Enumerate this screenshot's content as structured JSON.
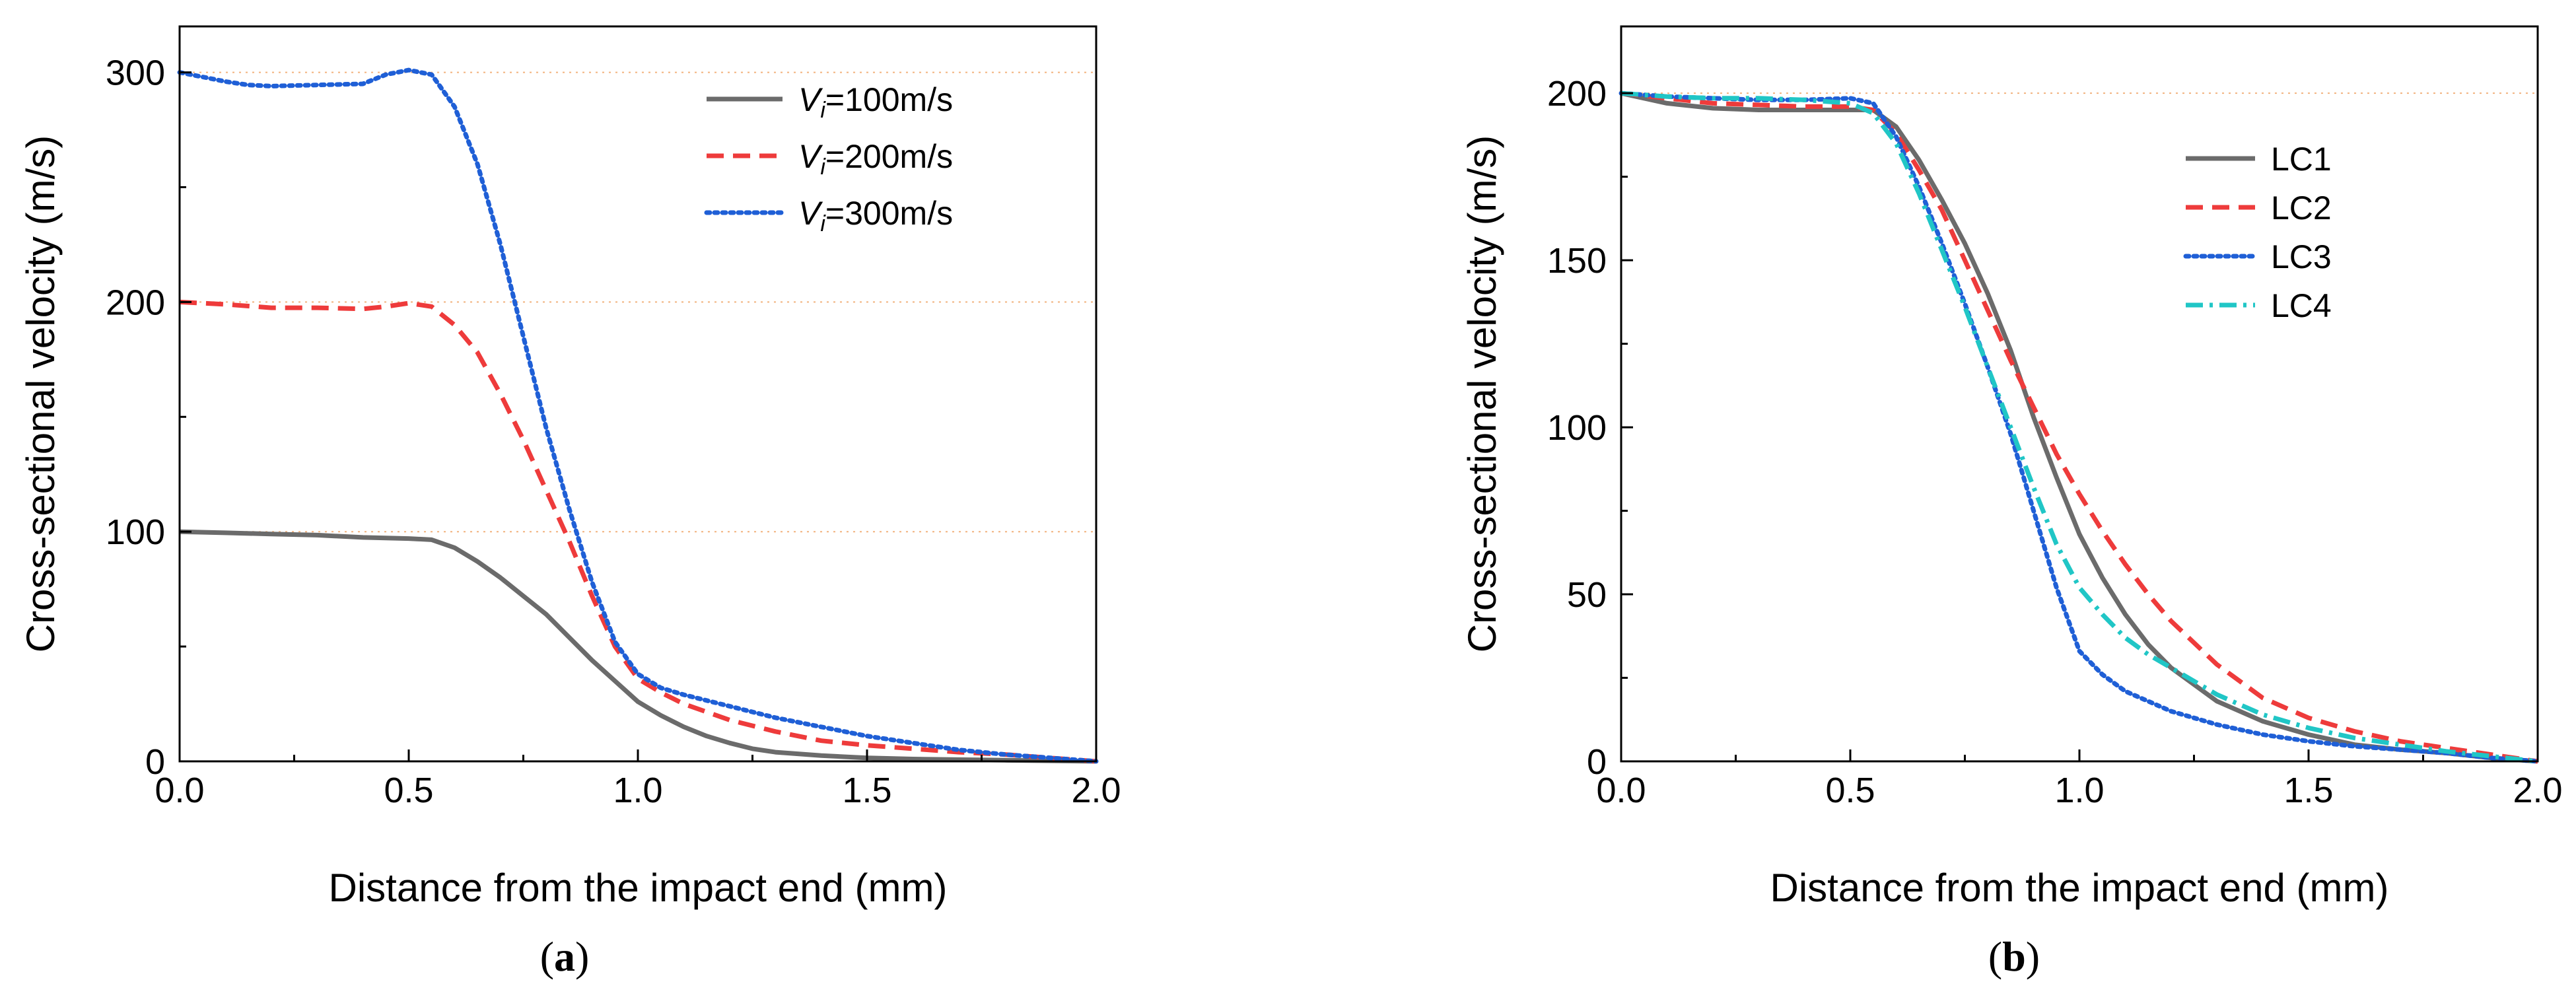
{
  "chart_data": [
    {
      "id": "a",
      "panel_label": "(a)",
      "type": "line",
      "xlabel": "Distance from the impact end (mm)",
      "ylabel": "Cross-sectional velocity (m/s)",
      "xlim": [
        0,
        2.0
      ],
      "ylim": [
        0,
        320
      ],
      "xticks": [
        "0.0",
        "0.5",
        "1.0",
        "1.5",
        "2.0"
      ],
      "yticks": [
        "0",
        "100",
        "200",
        "300"
      ],
      "legend_position": "top-right",
      "reference_lines": [
        100,
        200,
        300
      ],
      "series": [
        {
          "name": "V_i=100m/s",
          "label_prefix": "V",
          "label_sub": "i",
          "label_suffix": "=100m/s",
          "color": "#6b6b6b",
          "dash": "solid",
          "points": [
            [
              0,
              100
            ],
            [
              0.1,
              99.5
            ],
            [
              0.2,
              99
            ],
            [
              0.3,
              98.5
            ],
            [
              0.4,
              97.5
            ],
            [
              0.5,
              97
            ],
            [
              0.55,
              96.5
            ],
            [
              0.6,
              93
            ],
            [
              0.65,
              87
            ],
            [
              0.7,
              80
            ],
            [
              0.75,
              72
            ],
            [
              0.8,
              64
            ],
            [
              0.85,
              54
            ],
            [
              0.9,
              44
            ],
            [
              0.95,
              35
            ],
            [
              1.0,
              26
            ],
            [
              1.05,
              20
            ],
            [
              1.1,
              15
            ],
            [
              1.15,
              11
            ],
            [
              1.2,
              8
            ],
            [
              1.25,
              5.5
            ],
            [
              1.3,
              4
            ],
            [
              1.4,
              2.5
            ],
            [
              1.5,
              1.5
            ],
            [
              1.6,
              1
            ],
            [
              1.8,
              0.5
            ],
            [
              2.0,
              0
            ]
          ]
        },
        {
          "name": "V_i=200m/s",
          "label_prefix": "V",
          "label_sub": "i",
          "label_suffix": "=200m/s",
          "color": "#ee3b3b",
          "dash": "dashed",
          "points": [
            [
              0,
              200
            ],
            [
              0.1,
              199
            ],
            [
              0.2,
              197.5
            ],
            [
              0.3,
              197.5
            ],
            [
              0.4,
              197
            ],
            [
              0.45,
              198
            ],
            [
              0.5,
              199.5
            ],
            [
              0.55,
              198
            ],
            [
              0.6,
              190
            ],
            [
              0.65,
              178
            ],
            [
              0.7,
              160
            ],
            [
              0.75,
              140
            ],
            [
              0.8,
              118
            ],
            [
              0.85,
              96
            ],
            [
              0.9,
              72
            ],
            [
              0.95,
              50
            ],
            [
              1.0,
              36
            ],
            [
              1.05,
              30
            ],
            [
              1.1,
              25
            ],
            [
              1.2,
              18
            ],
            [
              1.3,
              13
            ],
            [
              1.4,
              9
            ],
            [
              1.5,
              7
            ],
            [
              1.6,
              5.5
            ],
            [
              1.7,
              4
            ],
            [
              1.8,
              3
            ],
            [
              1.9,
              1.5
            ],
            [
              2.0,
              0
            ]
          ]
        },
        {
          "name": "V_i=300m/s",
          "label_prefix": "V",
          "label_sub": "i",
          "label_suffix": "=300m/s",
          "color": "#1f5fd6",
          "dash": "dotted",
          "points": [
            [
              0,
              300
            ],
            [
              0.05,
              298
            ],
            [
              0.1,
              296
            ],
            [
              0.15,
              294.5
            ],
            [
              0.2,
              294
            ],
            [
              0.3,
              294.5
            ],
            [
              0.4,
              295
            ],
            [
              0.45,
              299
            ],
            [
              0.5,
              301
            ],
            [
              0.55,
              299
            ],
            [
              0.6,
              285
            ],
            [
              0.65,
              260
            ],
            [
              0.7,
              225
            ],
            [
              0.75,
              185
            ],
            [
              0.8,
              145
            ],
            [
              0.85,
              110
            ],
            [
              0.9,
              78
            ],
            [
              0.95,
              52
            ],
            [
              1.0,
              38
            ],
            [
              1.05,
              32
            ],
            [
              1.1,
              29
            ],
            [
              1.2,
              24
            ],
            [
              1.3,
              19
            ],
            [
              1.4,
              15
            ],
            [
              1.5,
              11
            ],
            [
              1.6,
              8
            ],
            [
              1.7,
              5
            ],
            [
              1.8,
              3
            ],
            [
              1.9,
              1.5
            ],
            [
              2.0,
              0
            ]
          ]
        }
      ]
    },
    {
      "id": "b",
      "panel_label": "(b)",
      "type": "line",
      "xlabel": "Distance from the impact end (mm)",
      "ylabel": "Cross-sectional velocity (m/s)",
      "xlim": [
        0,
        2.0
      ],
      "ylim": [
        0,
        220
      ],
      "xticks": [
        "0.0",
        "0.5",
        "1.0",
        "1.5",
        "2.0"
      ],
      "yticks": [
        "0",
        "50",
        "100",
        "150",
        "200"
      ],
      "legend_position": "top-right",
      "reference_lines": [
        200
      ],
      "series": [
        {
          "name": "LC1",
          "label_prefix": "LC1",
          "label_sub": "",
          "label_suffix": "",
          "color": "#6b6b6b",
          "dash": "solid",
          "points": [
            [
              0,
              200
            ],
            [
              0.1,
              197
            ],
            [
              0.2,
              195.5
            ],
            [
              0.3,
              195
            ],
            [
              0.4,
              195
            ],
            [
              0.5,
              195
            ],
            [
              0.55,
              195
            ],
            [
              0.6,
              190
            ],
            [
              0.65,
              180
            ],
            [
              0.7,
              168
            ],
            [
              0.75,
              155
            ],
            [
              0.8,
              140
            ],
            [
              0.85,
              123
            ],
            [
              0.9,
              103
            ],
            [
              0.95,
              85
            ],
            [
              1.0,
              68
            ],
            [
              1.05,
              55
            ],
            [
              1.1,
              44
            ],
            [
              1.15,
              35
            ],
            [
              1.2,
              28
            ],
            [
              1.3,
              18
            ],
            [
              1.4,
              12
            ],
            [
              1.5,
              8
            ],
            [
              1.6,
              5
            ],
            [
              1.7,
              3.5
            ],
            [
              1.8,
              2.5
            ],
            [
              1.9,
              1
            ],
            [
              2.0,
              0
            ]
          ]
        },
        {
          "name": "LC2",
          "label_prefix": "LC2",
          "label_sub": "",
          "label_suffix": "",
          "color": "#ee3b3b",
          "dash": "dashed",
          "points": [
            [
              0,
              200
            ],
            [
              0.1,
              198.5
            ],
            [
              0.2,
              197
            ],
            [
              0.3,
              196.5
            ],
            [
              0.4,
              196
            ],
            [
              0.5,
              196
            ],
            [
              0.55,
              195
            ],
            [
              0.6,
              188
            ],
            [
              0.65,
              177
            ],
            [
              0.7,
              165
            ],
            [
              0.75,
              150
            ],
            [
              0.8,
              135
            ],
            [
              0.85,
              120
            ],
            [
              0.9,
              106
            ],
            [
              0.95,
              92
            ],
            [
              1.0,
              80
            ],
            [
              1.05,
              69
            ],
            [
              1.1,
              59
            ],
            [
              1.15,
              50
            ],
            [
              1.2,
              42
            ],
            [
              1.3,
              29
            ],
            [
              1.4,
              19
            ],
            [
              1.5,
              13
            ],
            [
              1.6,
              9
            ],
            [
              1.7,
              6
            ],
            [
              1.8,
              4
            ],
            [
              1.9,
              2
            ],
            [
              2.0,
              0
            ]
          ]
        },
        {
          "name": "LC3",
          "label_prefix": "LC3",
          "label_sub": "",
          "label_suffix": "",
          "color": "#1f5fd6",
          "dash": "dotted",
          "points": [
            [
              0,
              200
            ],
            [
              0.1,
              199
            ],
            [
              0.2,
              198.5
            ],
            [
              0.3,
              198
            ],
            [
              0.4,
              198
            ],
            [
              0.5,
              198.5
            ],
            [
              0.55,
              197
            ],
            [
              0.6,
              187
            ],
            [
              0.65,
              172
            ],
            [
              0.7,
              155
            ],
            [
              0.75,
              137
            ],
            [
              0.8,
              118
            ],
            [
              0.85,
              98
            ],
            [
              0.9,
              75
            ],
            [
              0.95,
              52
            ],
            [
              1.0,
              33
            ],
            [
              1.05,
              26
            ],
            [
              1.1,
              21
            ],
            [
              1.2,
              15
            ],
            [
              1.3,
              11
            ],
            [
              1.4,
              8
            ],
            [
              1.5,
              6
            ],
            [
              1.6,
              4.5
            ],
            [
              1.7,
              3.5
            ],
            [
              1.8,
              2.5
            ],
            [
              1.9,
              1
            ],
            [
              2.0,
              0
            ]
          ]
        },
        {
          "name": "LC4",
          "label_prefix": "LC4",
          "label_sub": "",
          "label_suffix": "",
          "color": "#20c6c6",
          "dash": "dashdot",
          "points": [
            [
              0,
              200
            ],
            [
              0.1,
              199
            ],
            [
              0.2,
              198.5
            ],
            [
              0.3,
              198.5
            ],
            [
              0.4,
              198
            ],
            [
              0.5,
              197
            ],
            [
              0.55,
              194
            ],
            [
              0.6,
              185
            ],
            [
              0.65,
              170
            ],
            [
              0.7,
              153
            ],
            [
              0.75,
              136
            ],
            [
              0.8,
              118
            ],
            [
              0.85,
              100
            ],
            [
              0.9,
              82
            ],
            [
              0.95,
              65
            ],
            [
              1.0,
              52
            ],
            [
              1.05,
              44
            ],
            [
              1.1,
              37
            ],
            [
              1.15,
              32
            ],
            [
              1.2,
              28
            ],
            [
              1.3,
              20
            ],
            [
              1.4,
              14
            ],
            [
              1.5,
              10
            ],
            [
              1.6,
              7
            ],
            [
              1.7,
              5
            ],
            [
              1.8,
              3
            ],
            [
              1.9,
              1.5
            ],
            [
              2.0,
              0
            ]
          ]
        }
      ]
    }
  ]
}
